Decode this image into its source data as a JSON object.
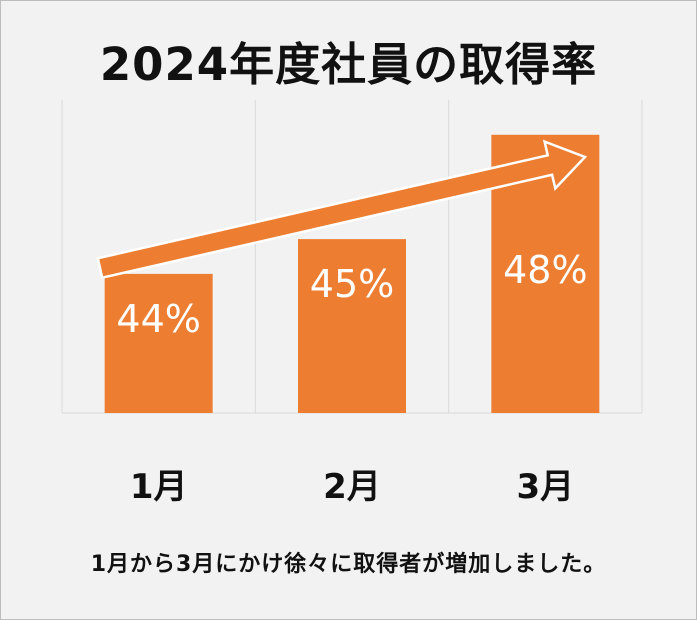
{
  "title": "2024年度社員の取得率",
  "caption": "1月から3月にかけ徐々に取得者が増加しました。",
  "colors": {
    "bar": "#ed7d31",
    "label": "#ffffff",
    "grid": "#d9d9d9",
    "background": "#f2f2f2"
  },
  "chart_data": {
    "type": "bar",
    "title": "2024年度社員の取得率",
    "xlabel": "",
    "ylabel": "",
    "categories": [
      "1月",
      "2月",
      "3月"
    ],
    "values": [
      44,
      45,
      48
    ],
    "data_labels": [
      "44%",
      "45%",
      "48%"
    ],
    "unit": "%",
    "ylim": [
      40,
      49
    ],
    "grid": "vertical",
    "legend": "none",
    "annotations": [
      {
        "type": "arrow",
        "direction": "upward-trend"
      }
    ]
  }
}
